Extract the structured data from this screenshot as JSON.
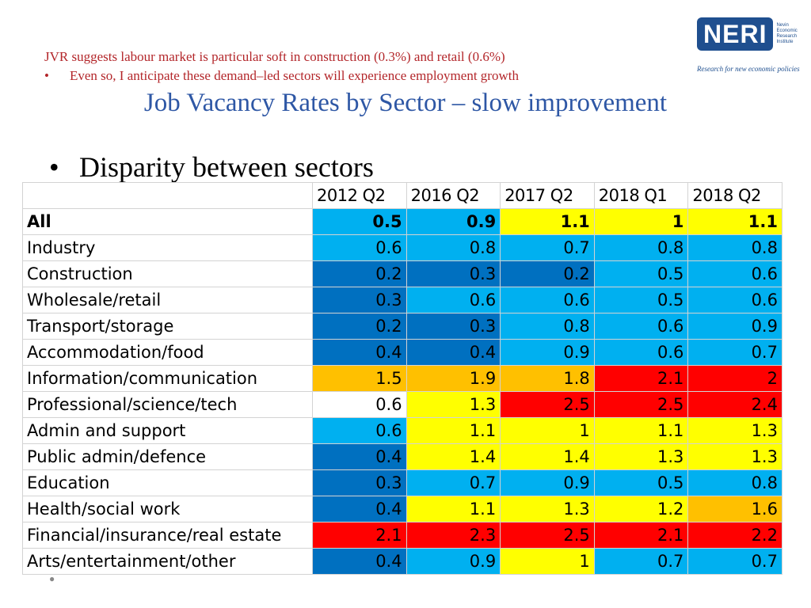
{
  "notes": {
    "line1": "JVR suggests labour market is particular soft in construction (0.3%) and retail (0.6%)",
    "line2_bullet": "•",
    "line2": "Even so, I anticipate these demand–led sectors will experience employment growth"
  },
  "title": "Job Vacancy Rates by Sector – slow improvement",
  "logo": {
    "name": "NERI",
    "sub": "Nevin Economic Research Institute",
    "tagline": "Research for new economic policies"
  },
  "subheading": {
    "bullet": "•",
    "text": "Disparity between sectors"
  },
  "table": {
    "columns": [
      "2012 Q2",
      "2016 Q2",
      "2017 Q2",
      "2018 Q1",
      "2018 Q2"
    ],
    "rows": [
      {
        "label": "All",
        "values": [
          "0.5",
          "0.9",
          "1.1",
          "1",
          "1.1"
        ],
        "colors": [
          "light",
          "light",
          "yellow",
          "yellow",
          "yellow"
        ]
      },
      {
        "label": "Industry",
        "values": [
          "0.6",
          "0.8",
          "0.7",
          "0.8",
          "0.8"
        ],
        "colors": [
          "light",
          "light",
          "light",
          "light",
          "light"
        ]
      },
      {
        "label": "Construction",
        "values": [
          "0.2",
          "0.3",
          "0.2",
          "0.5",
          "0.6"
        ],
        "colors": [
          "dark",
          "dark",
          "dark",
          "light",
          "light"
        ]
      },
      {
        "label": "Wholesale/retail",
        "values": [
          "0.3",
          "0.6",
          "0.6",
          "0.5",
          "0.6"
        ],
        "colors": [
          "dark",
          "light",
          "light",
          "light",
          "light"
        ]
      },
      {
        "label": "Transport/storage",
        "values": [
          "0.2",
          "0.3",
          "0.8",
          "0.6",
          "0.9"
        ],
        "colors": [
          "dark",
          "dark",
          "light",
          "light",
          "light"
        ]
      },
      {
        "label": "Accommodation/food",
        "values": [
          "0.4",
          "0.4",
          "0.9",
          "0.6",
          "0.7"
        ],
        "colors": [
          "dark",
          "dark",
          "light",
          "light",
          "light"
        ]
      },
      {
        "label": "Information/communication",
        "values": [
          "1.5",
          "1.9",
          "1.8",
          "2.1",
          "2"
        ],
        "colors": [
          "orange",
          "orange",
          "orange",
          "red",
          "red"
        ]
      },
      {
        "label": "Professional/science/tech",
        "values": [
          "0.6",
          "1.3",
          "2.5",
          "2.5",
          "2.4"
        ],
        "colors": [
          "white",
          "yellow",
          "red",
          "red",
          "red"
        ]
      },
      {
        "label": "Admin and support",
        "values": [
          "0.6",
          "1.1",
          "1",
          "1.1",
          "1.3"
        ],
        "colors": [
          "light",
          "yellow",
          "yellow",
          "yellow",
          "yellow"
        ]
      },
      {
        "label": "Public admin/defence",
        "values": [
          "0.4",
          "1.4",
          "1.4",
          "1.3",
          "1.3"
        ],
        "colors": [
          "dark",
          "yellow",
          "yellow",
          "yellow",
          "yellow"
        ]
      },
      {
        "label": "Education",
        "values": [
          "0.3",
          "0.7",
          "0.9",
          "0.5",
          "0.8"
        ],
        "colors": [
          "dark",
          "light",
          "light",
          "light",
          "light"
        ]
      },
      {
        "label": "Health/social work",
        "values": [
          "0.4",
          "1.1",
          "1.3",
          "1.2",
          "1.6"
        ],
        "colors": [
          "dark",
          "yellow",
          "yellow",
          "yellow",
          "orange"
        ]
      },
      {
        "label": "Financial/insurance/real estate",
        "values": [
          "2.1",
          "2.3",
          "2.5",
          "2.1",
          "2.2"
        ],
        "colors": [
          "red",
          "red",
          "red",
          "red",
          "red"
        ]
      },
      {
        "label": "Arts/entertainment/other",
        "values": [
          "0.4",
          "0.9",
          "1",
          "0.7",
          "0.7"
        ],
        "colors": [
          "dark",
          "light",
          "yellow",
          "light",
          "light"
        ]
      }
    ]
  },
  "colors": {
    "dark": "#0070c0",
    "light": "#00b0f0",
    "yellow": "#ffff00",
    "orange": "#ffc000",
    "red": "#ff0000",
    "white": "#ffffff",
    "title": "#2e57a5",
    "notes": "#b3262a"
  }
}
